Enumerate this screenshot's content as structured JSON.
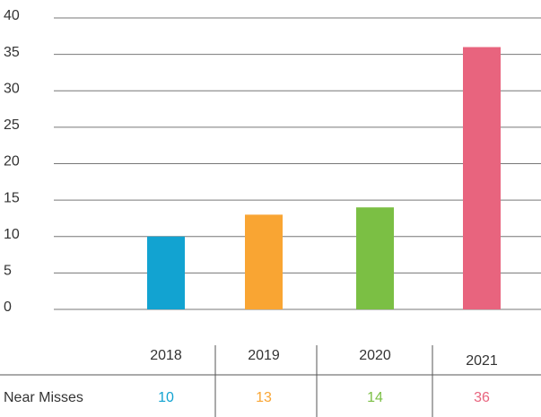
{
  "chart_data": {
    "type": "bar",
    "categories": [
      "2018",
      "2019",
      "2020",
      "2021"
    ],
    "series": [
      {
        "name": "Near Misses",
        "values": [
          10,
          13,
          14,
          36
        ]
      }
    ],
    "colors": [
      "#12a3d1",
      "#f9a533",
      "#7bbf44",
      "#e8647e"
    ],
    "ylim": [
      0,
      40
    ],
    "yticks": [
      0,
      5,
      10,
      15,
      20,
      25,
      30,
      35,
      40
    ],
    "grid": true
  }
}
